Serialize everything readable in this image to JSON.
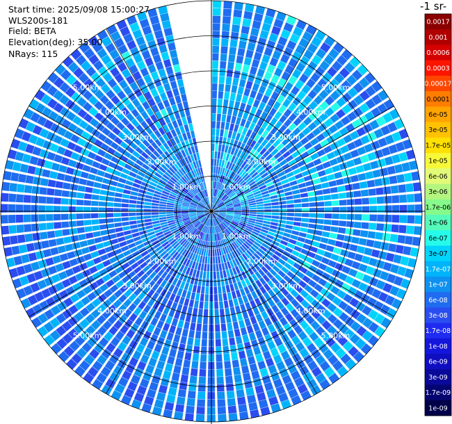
{
  "header": {
    "start_time": "Start time: 2025/09/08 15:00:27",
    "instrument": "WLS200s-181",
    "field": "Field: BETA",
    "elevation": "Elevation(deg): 35.00",
    "nrays": "NRays: 115"
  },
  "colorbar": {
    "title": "-1 sr-",
    "colors": [
      "#8b0000",
      "#b00000",
      "#d50000",
      "#fb1400",
      "#ff4600",
      "#ff7d00",
      "#ffa400",
      "#ffc100",
      "#ffe000",
      "#f8f83a",
      "#e2fa78",
      "#b4f57f",
      "#86fa8b",
      "#56fbba",
      "#26fbe9",
      "#00d4fc",
      "#00b4fb",
      "#0e91f0",
      "#1f6cf0",
      "#2a4df0",
      "#1f2cf0",
      "#1416db",
      "#0f0ec0",
      "#0a0a9a",
      "#050572",
      "#00004a"
    ],
    "labels": [
      "0.0017",
      "0.001",
      "0.0006",
      "0.0003",
      "0.00017",
      "0.0001",
      "6e-05",
      "3e-05",
      "1.7e-05",
      "1e-05",
      "6e-06",
      "3e-06",
      "1.7e-06",
      "1e-06",
      "6e-07",
      "3e-07",
      "1.7e-07",
      "1e-07",
      "6e-08",
      "3e-08",
      "1.7e-08",
      "1e-08",
      "6e-09",
      "3e-09",
      "1.7e-09",
      "1e-09"
    ]
  },
  "chart_data": {
    "type": "heatmap",
    "projection": "polar (plan position indicator)",
    "field": "BETA",
    "elevation_deg": 35.0,
    "n_rays": 115,
    "range_rings_km": [
      1,
      2,
      3,
      4,
      5
    ],
    "range_ring_labels": [
      "1.00km",
      "2.00km",
      "3.00km",
      "4.00km",
      "5.00km"
    ],
    "max_range_km": 6.0,
    "missing_sector_deg": [
      -12,
      0
    ],
    "dominant_value_band": "3e-08 to 1.7e-07",
    "grid": true
  }
}
